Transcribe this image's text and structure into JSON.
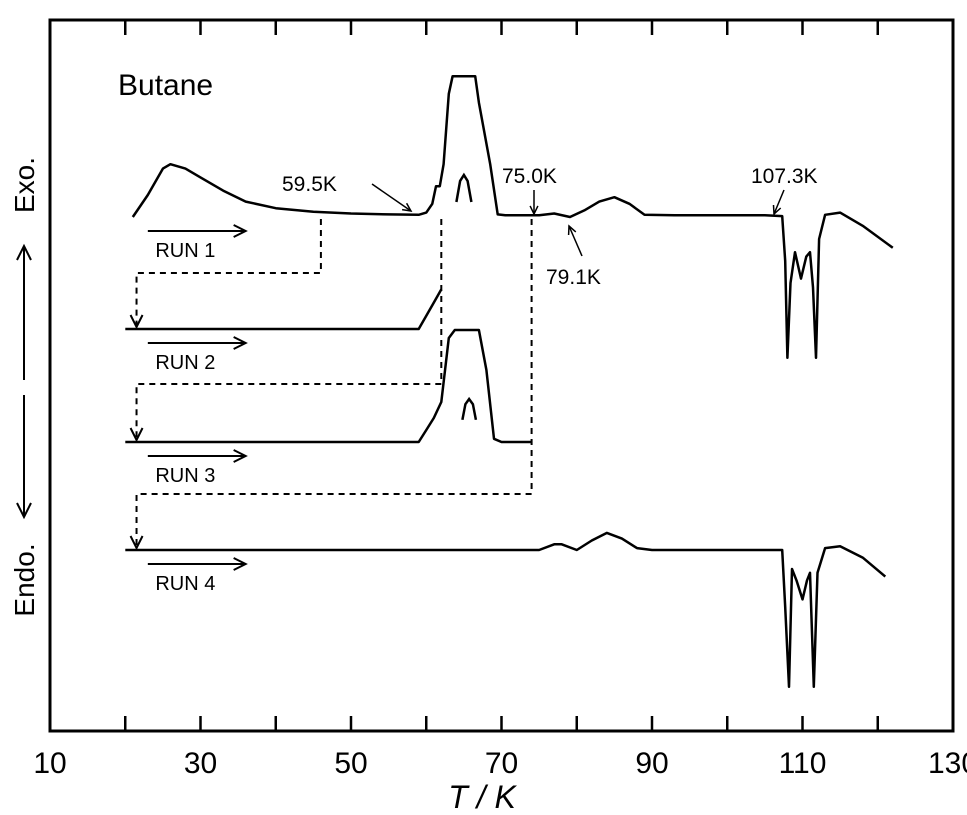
{
  "chart_data": {
    "type": "line",
    "title": "Butane",
    "xlabel": "T / K",
    "ylabel_up": "Exo.",
    "ylabel_down": "Endo.",
    "xlim": [
      10,
      130
    ],
    "xticks": [
      10,
      30,
      50,
      70,
      90,
      110,
      130
    ],
    "grid": false,
    "series": [
      {
        "name": "RUN 1",
        "x": [
          21,
          23,
          25,
          26,
          28,
          30,
          33,
          36,
          40,
          45,
          50,
          55,
          59,
          60,
          60.8,
          61.3,
          61.8,
          62.3,
          63,
          63.5,
          66.5,
          67,
          68.5,
          69.5,
          70.5,
          73,
          75,
          77,
          79.1,
          81,
          83,
          85,
          87,
          89,
          93,
          100,
          105,
          107.3,
          107.7,
          108,
          108.4,
          109,
          109.8,
          110.5,
          111,
          111.4,
          111.8,
          112.2,
          113,
          115,
          118,
          122
        ],
        "y": [
          0,
          0.5,
          1.1,
          1.2,
          1.1,
          0.9,
          0.6,
          0.35,
          0.2,
          0.12,
          0.08,
          0.06,
          0.05,
          0.1,
          0.3,
          0.7,
          0.7,
          1.2,
          2.8,
          3.2,
          3.2,
          2.6,
          1.2,
          0.06,
          0.04,
          0.04,
          0.04,
          0.08,
          0.0,
          0.15,
          0.35,
          0.45,
          0.3,
          0.05,
          0.04,
          0.04,
          0.04,
          0.02,
          -1.0,
          -3.2,
          -1.5,
          -0.8,
          -1.4,
          -0.9,
          -0.8,
          -1.6,
          -3.2,
          -0.5,
          0.05,
          0.1,
          -0.2,
          -0.7
        ]
      },
      {
        "name": "RUN 2",
        "x": [
          20,
          30,
          40,
          50,
          59,
          60,
          61,
          62
        ],
        "y": [
          0,
          0,
          0,
          0,
          0,
          0.3,
          0.6,
          0.9
        ]
      },
      {
        "name": "RUN 3",
        "x": [
          20,
          30,
          40,
          50,
          59,
          60,
          61,
          62,
          63,
          63.8,
          67,
          68,
          69,
          70,
          74
        ],
        "y": [
          0,
          0,
          0,
          0,
          0,
          0.3,
          0.6,
          1.0,
          2.6,
          2.8,
          2.8,
          1.8,
          0.08,
          0,
          0
        ]
      },
      {
        "name": "RUN 4",
        "x": [
          20,
          40,
          60,
          75,
          77,
          78,
          80,
          82,
          84,
          86,
          88,
          90,
          100,
          107.3,
          107.7,
          108.2,
          108.6,
          109.2,
          110,
          110.6,
          111,
          111.5,
          112,
          113,
          115,
          118,
          121
        ],
        "y": [
          0,
          0,
          0,
          0,
          0.15,
          0.15,
          0,
          0.25,
          0.45,
          0.3,
          0.05,
          0,
          0,
          0,
          -1.5,
          -3.6,
          -0.5,
          -0.8,
          -1.3,
          -0.8,
          -0.6,
          -3.6,
          -0.6,
          0.05,
          0.1,
          -0.2,
          -0.7
        ]
      }
    ],
    "peak_insets": [
      {
        "run": "RUN 1",
        "x": [
          64,
          64.5,
          65,
          65.5,
          66
        ],
        "y": [
          0.1,
          0.8,
          1.0,
          0.8,
          0.1
        ]
      },
      {
        "run": "RUN 3",
        "x": [
          64.8,
          65.2,
          65.7,
          66.2,
          66.6
        ],
        "y": [
          0.2,
          0.8,
          1.0,
          0.8,
          0.2
        ]
      }
    ],
    "annotations": [
      {
        "text": "59.5K",
        "x": 59.5,
        "series": "RUN 1"
      },
      {
        "text": "75.0K",
        "x": 75.0,
        "series": "RUN 1"
      },
      {
        "text": "79.1K",
        "x": 79.1,
        "series": "RUN 1"
      },
      {
        "text": "107.3K",
        "x": 107.3,
        "series": "RUN 1"
      }
    ],
    "connectors": [
      {
        "from": "RUN 1",
        "to": "RUN 2",
        "x_stop": 46
      },
      {
        "from": "RUN 1",
        "to": "RUN 3",
        "x_stop": 62
      },
      {
        "from": "RUN 1",
        "to": "RUN 4",
        "x_stop": 74
      }
    ],
    "colors": {
      "line": "#000000",
      "background": "#ffffff"
    }
  }
}
